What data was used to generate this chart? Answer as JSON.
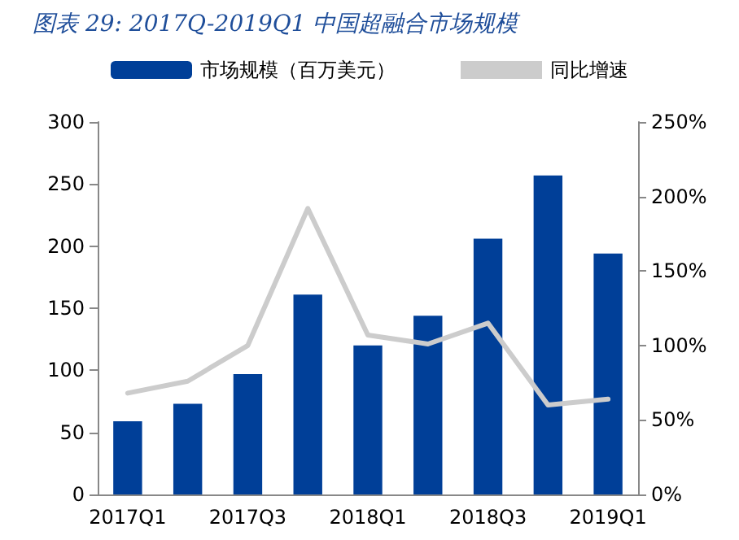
{
  "chart_data": {
    "type": "bar",
    "title": "图表 29:  2017Q-2019Q1 中国超融合市场规模",
    "categories": [
      "2017Q1",
      null,
      "2017Q3",
      null,
      "2018Q1",
      null,
      "2018Q3",
      null,
      "2019Q1"
    ],
    "series": [
      {
        "name": "市场规模（百万美元）",
        "color": "#003f98",
        "values": [
          59,
          73,
          97,
          161,
          120,
          144,
          206,
          257,
          194
        ]
      },
      {
        "name": "同比增速",
        "type": "line",
        "axis": "y2",
        "color": "#cccccc",
        "values": [
          68,
          76,
          100,
          192,
          107,
          101,
          115,
          60,
          64
        ]
      }
    ],
    "ylim": [
      0,
      300
    ],
    "yticks": [
      0,
      50,
      100,
      150,
      200,
      250,
      300
    ],
    "y2lim": [
      0,
      250
    ],
    "y2ticks": [
      {
        "value": 0,
        "label": "0%"
      },
      {
        "value": 50,
        "label": "50%"
      },
      {
        "value": 100,
        "label": "100%"
      },
      {
        "value": 150,
        "label": "150%"
      },
      {
        "value": 200,
        "label": "200%"
      },
      {
        "value": 250,
        "label": "250%"
      }
    ],
    "grid": false,
    "legend": "top",
    "marker": "none",
    "line_style": "solid"
  }
}
